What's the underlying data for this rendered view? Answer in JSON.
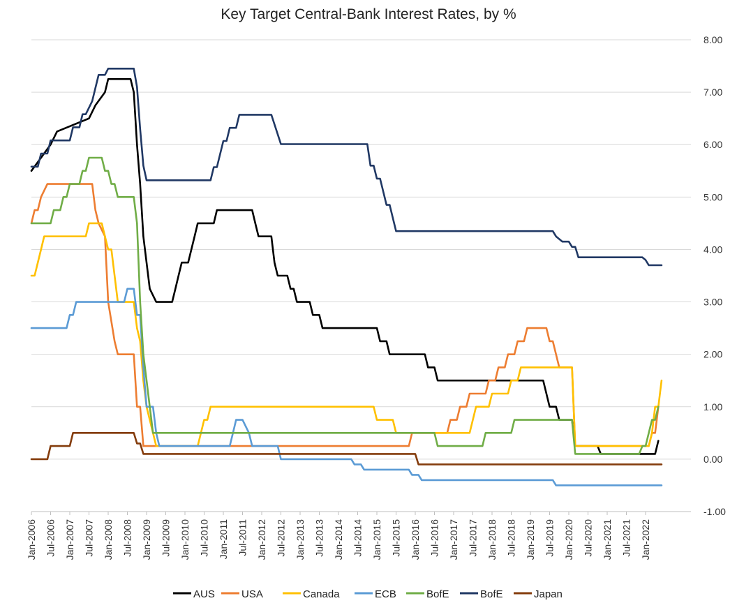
{
  "chart_data": {
    "type": "line",
    "title": "Key Target Central-Bank Interest Rates, by %",
    "xlabel": "",
    "ylabel": "",
    "ylim": [
      -1.0,
      8.0
    ],
    "y_ticks": [
      "8.00",
      "7.00",
      "6.00",
      "5.00",
      "4.00",
      "3.00",
      "2.00",
      "1.00",
      "0.00",
      "-1.00"
    ],
    "x_ticks": [
      "Jan-2006",
      "Jul-2006",
      "Jan-2007",
      "Jul-2007",
      "Jan-2008",
      "Jul-2008",
      "Jan-2009",
      "Jul-2009",
      "Jan-2010",
      "Jul-2010",
      "Jan-2011",
      "Jul-2011",
      "Jan-2012",
      "Jul-2012",
      "Jan-2013",
      "Jul-2013",
      "Jan-2014",
      "Jul-2014",
      "Jan-2015",
      "Jul-2015",
      "Jan-2016",
      "Jul-2016",
      "Jan-2017",
      "Jul-2017",
      "Jan-2018",
      "Jul-2018",
      "Jan-2019",
      "Jul-2019",
      "Jan-2020",
      "Jul-2020",
      "Jan-2021",
      "Jul-2021",
      "Jan-2022"
    ],
    "grid": true,
    "legend_position": "bottom",
    "series": [
      {
        "name": "AUS",
        "color": "#000000",
        "points": [
          [
            "2006-01",
            5.5
          ],
          [
            "2006-04",
            5.75
          ],
          [
            "2006-07",
            6.0
          ],
          [
            "2006-09",
            6.25
          ],
          [
            "2007-07",
            6.5
          ],
          [
            "2007-09",
            6.75
          ],
          [
            "2007-12",
            7.0
          ],
          [
            "2008-01",
            7.25
          ],
          [
            "2008-08",
            7.25
          ],
          [
            "2008-09",
            7.0
          ],
          [
            "2008-10",
            6.0
          ],
          [
            "2008-11",
            5.25
          ],
          [
            "2008-12",
            4.25
          ],
          [
            "2009-02",
            3.25
          ],
          [
            "2009-04",
            3.0
          ],
          [
            "2009-09",
            3.0
          ],
          [
            "2009-10",
            3.25
          ],
          [
            "2009-11",
            3.5
          ],
          [
            "2009-12",
            3.75
          ],
          [
            "2010-02",
            3.75
          ],
          [
            "2010-03",
            4.0
          ],
          [
            "2010-04",
            4.25
          ],
          [
            "2010-05",
            4.5
          ],
          [
            "2010-10",
            4.5
          ],
          [
            "2010-11",
            4.75
          ],
          [
            "2011-10",
            4.75
          ],
          [
            "2011-11",
            4.5
          ],
          [
            "2011-12",
            4.25
          ],
          [
            "2012-04",
            4.25
          ],
          [
            "2012-05",
            3.75
          ],
          [
            "2012-06",
            3.5
          ],
          [
            "2012-09",
            3.5
          ],
          [
            "2012-10",
            3.25
          ],
          [
            "2012-11",
            3.25
          ],
          [
            "2012-12",
            3.0
          ],
          [
            "2013-04",
            3.0
          ],
          [
            "2013-05",
            2.75
          ],
          [
            "2013-07",
            2.75
          ],
          [
            "2013-08",
            2.5
          ],
          [
            "2015-01",
            2.5
          ],
          [
            "2015-02",
            2.25
          ],
          [
            "2015-04",
            2.25
          ],
          [
            "2015-05",
            2.0
          ],
          [
            "2016-04",
            2.0
          ],
          [
            "2016-05",
            1.75
          ],
          [
            "2016-07",
            1.75
          ],
          [
            "2016-08",
            1.5
          ],
          [
            "2019-05",
            1.5
          ],
          [
            "2019-06",
            1.25
          ],
          [
            "2019-07",
            1.0
          ],
          [
            "2019-09",
            1.0
          ],
          [
            "2019-10",
            0.75
          ],
          [
            "2020-02",
            0.75
          ],
          [
            "2020-03",
            0.25
          ],
          [
            "2020-10",
            0.25
          ],
          [
            "2020-11",
            0.1
          ],
          [
            "2022-04",
            0.1
          ],
          [
            "2022-05",
            0.35
          ]
        ]
      },
      {
        "name": "USA",
        "color": "#ED7D31",
        "points": [
          [
            "2006-01",
            4.5
          ],
          [
            "2006-02",
            4.75
          ],
          [
            "2006-03",
            4.75
          ],
          [
            "2006-04",
            5.0
          ],
          [
            "2006-06",
            5.25
          ],
          [
            "2007-08",
            5.25
          ],
          [
            "2007-09",
            4.75
          ],
          [
            "2007-10",
            4.5
          ],
          [
            "2007-12",
            4.25
          ],
          [
            "2008-01",
            3.0
          ],
          [
            "2008-03",
            2.25
          ],
          [
            "2008-04",
            2.0
          ],
          [
            "2008-09",
            2.0
          ],
          [
            "2008-10",
            1.0
          ],
          [
            "2008-11",
            1.0
          ],
          [
            "2008-12",
            0.25
          ],
          [
            "2015-11",
            0.25
          ],
          [
            "2015-12",
            0.5
          ],
          [
            "2016-11",
            0.5
          ],
          [
            "2016-12",
            0.75
          ],
          [
            "2017-02",
            0.75
          ],
          [
            "2017-03",
            1.0
          ],
          [
            "2017-05",
            1.0
          ],
          [
            "2017-06",
            1.25
          ],
          [
            "2017-11",
            1.25
          ],
          [
            "2017-12",
            1.5
          ],
          [
            "2018-02",
            1.5
          ],
          [
            "2018-03",
            1.75
          ],
          [
            "2018-05",
            1.75
          ],
          [
            "2018-06",
            2.0
          ],
          [
            "2018-08",
            2.0
          ],
          [
            "2018-09",
            2.25
          ],
          [
            "2018-11",
            2.25
          ],
          [
            "2018-12",
            2.5
          ],
          [
            "2019-06",
            2.5
          ],
          [
            "2019-07",
            2.25
          ],
          [
            "2019-08",
            2.25
          ],
          [
            "2019-09",
            2.0
          ],
          [
            "2019-10",
            1.75
          ],
          [
            "2020-02",
            1.75
          ],
          [
            "2020-03",
            0.25
          ],
          [
            "2022-02",
            0.25
          ],
          [
            "2022-03",
            0.5
          ],
          [
            "2022-04",
            0.5
          ],
          [
            "2022-05",
            1.0
          ]
        ]
      },
      {
        "name": "Canada",
        "color": "#FFC000",
        "points": [
          [
            "2006-01",
            3.5
          ],
          [
            "2006-02",
            3.5
          ],
          [
            "2006-04",
            4.0
          ],
          [
            "2006-05",
            4.25
          ],
          [
            "2007-06",
            4.25
          ],
          [
            "2007-07",
            4.5
          ],
          [
            "2007-11",
            4.5
          ],
          [
            "2007-12",
            4.25
          ],
          [
            "2008-01",
            4.0
          ],
          [
            "2008-02",
            4.0
          ],
          [
            "2008-03",
            3.5
          ],
          [
            "2008-04",
            3.0
          ],
          [
            "2008-09",
            3.0
          ],
          [
            "2008-10",
            2.5
          ],
          [
            "2008-11",
            2.25
          ],
          [
            "2008-12",
            1.5
          ],
          [
            "2009-01",
            1.0
          ],
          [
            "2009-03",
            0.5
          ],
          [
            "2009-04",
            0.25
          ],
          [
            "2010-05",
            0.25
          ],
          [
            "2010-06",
            0.5
          ],
          [
            "2010-07",
            0.75
          ],
          [
            "2010-08",
            0.75
          ],
          [
            "2010-09",
            1.0
          ],
          [
            "2014-12",
            1.0
          ],
          [
            "2015-01",
            0.75
          ],
          [
            "2015-06",
            0.75
          ],
          [
            "2015-07",
            0.5
          ],
          [
            "2017-06",
            0.5
          ],
          [
            "2017-07",
            0.75
          ],
          [
            "2017-08",
            1.0
          ],
          [
            "2017-12",
            1.0
          ],
          [
            "2018-01",
            1.25
          ],
          [
            "2018-06",
            1.25
          ],
          [
            "2018-07",
            1.5
          ],
          [
            "2018-09",
            1.5
          ],
          [
            "2018-10",
            1.75
          ],
          [
            "2020-02",
            1.75
          ],
          [
            "2020-03",
            0.25
          ],
          [
            "2022-02",
            0.25
          ],
          [
            "2022-03",
            0.5
          ],
          [
            "2022-04",
            1.0
          ],
          [
            "2022-05",
            1.0
          ],
          [
            "2022-06",
            1.5
          ]
        ]
      },
      {
        "name": "ECB",
        "color": "#5B9BD5",
        "points": [
          [
            "2006-01",
            2.5
          ],
          [
            "2006-12",
            2.5
          ],
          [
            "2007-01",
            2.75
          ],
          [
            "2007-02",
            2.75
          ],
          [
            "2007-03",
            3.0
          ],
          [
            "2008-06",
            3.0
          ],
          [
            "2008-07",
            3.25
          ],
          [
            "2008-09",
            3.25
          ],
          [
            "2008-10",
            2.75
          ],
          [
            "2008-11",
            2.75
          ],
          [
            "2008-12",
            1.75
          ],
          [
            "2009-01",
            1.0
          ],
          [
            "2009-03",
            1.0
          ],
          [
            "2009-04",
            0.5
          ],
          [
            "2009-05",
            0.25
          ],
          [
            "2011-03",
            0.25
          ],
          [
            "2011-04",
            0.5
          ],
          [
            "2011-05",
            0.75
          ],
          [
            "2011-07",
            0.75
          ],
          [
            "2011-09",
            0.5
          ],
          [
            "2011-10",
            0.25
          ],
          [
            "2012-06",
            0.25
          ],
          [
            "2012-07",
            0.0
          ],
          [
            "2014-05",
            0.0
          ],
          [
            "2014-06",
            -0.1
          ],
          [
            "2014-08",
            -0.1
          ],
          [
            "2014-09",
            -0.2
          ],
          [
            "2015-11",
            -0.2
          ],
          [
            "2015-12",
            -0.3
          ],
          [
            "2016-02",
            -0.3
          ],
          [
            "2016-03",
            -0.4
          ],
          [
            "2019-08",
            -0.4
          ],
          [
            "2019-09",
            -0.5
          ],
          [
            "2022-06",
            -0.5
          ]
        ]
      },
      {
        "name": "BofE",
        "color": "#70AD47",
        "points": [
          [
            "2006-01",
            4.5
          ],
          [
            "2006-07",
            4.5
          ],
          [
            "2006-08",
            4.75
          ],
          [
            "2006-10",
            4.75
          ],
          [
            "2006-11",
            5.0
          ],
          [
            "2006-12",
            5.0
          ],
          [
            "2007-01",
            5.25
          ],
          [
            "2007-04",
            5.25
          ],
          [
            "2007-05",
            5.5
          ],
          [
            "2007-06",
            5.5
          ],
          [
            "2007-07",
            5.75
          ],
          [
            "2007-11",
            5.75
          ],
          [
            "2007-12",
            5.5
          ],
          [
            "2008-01",
            5.5
          ],
          [
            "2008-02",
            5.25
          ],
          [
            "2008-03",
            5.25
          ],
          [
            "2008-04",
            5.0
          ],
          [
            "2008-09",
            5.0
          ],
          [
            "2008-10",
            4.5
          ],
          [
            "2008-11",
            3.0
          ],
          [
            "2008-12",
            2.0
          ],
          [
            "2009-01",
            1.5
          ],
          [
            "2009-02",
            1.0
          ],
          [
            "2009-03",
            0.5
          ],
          [
            "2016-07",
            0.5
          ],
          [
            "2016-08",
            0.25
          ],
          [
            "2017-10",
            0.25
          ],
          [
            "2017-11",
            0.5
          ],
          [
            "2018-07",
            0.5
          ],
          [
            "2018-08",
            0.75
          ],
          [
            "2020-02",
            0.75
          ],
          [
            "2020-03",
            0.1
          ],
          [
            "2021-11",
            0.1
          ],
          [
            "2021-12",
            0.25
          ],
          [
            "2022-01",
            0.25
          ],
          [
            "2022-02",
            0.5
          ],
          [
            "2022-03",
            0.75
          ],
          [
            "2022-04",
            0.75
          ],
          [
            "2022-05",
            1.0
          ]
        ]
      },
      {
        "name": "BofE",
        "color": "#203864",
        "points": [
          [
            "2006-01",
            5.58
          ],
          [
            "2006-03",
            5.58
          ],
          [
            "2006-04",
            5.83
          ],
          [
            "2006-06",
            5.83
          ],
          [
            "2006-07",
            6.08
          ],
          [
            "2007-01",
            6.08
          ],
          [
            "2007-02",
            6.33
          ],
          [
            "2007-04",
            6.33
          ],
          [
            "2007-05",
            6.58
          ],
          [
            "2007-06",
            6.58
          ],
          [
            "2007-08",
            6.83
          ],
          [
            "2007-09",
            7.08
          ],
          [
            "2007-10",
            7.33
          ],
          [
            "2007-12",
            7.33
          ],
          [
            "2008-01",
            7.45
          ],
          [
            "2008-09",
            7.45
          ],
          [
            "2008-10",
            7.1
          ],
          [
            "2008-11",
            6.3
          ],
          [
            "2008-12",
            5.6
          ],
          [
            "2009-01",
            5.32
          ],
          [
            "2010-09",
            5.32
          ],
          [
            "2010-10",
            5.57
          ],
          [
            "2010-11",
            5.57
          ],
          [
            "2011-01",
            6.07
          ],
          [
            "2011-02",
            6.07
          ],
          [
            "2011-03",
            6.32
          ],
          [
            "2011-05",
            6.32
          ],
          [
            "2011-06",
            6.57
          ],
          [
            "2012-04",
            6.57
          ],
          [
            "2012-07",
            6.01
          ],
          [
            "2014-10",
            6.01
          ],
          [
            "2014-11",
            5.6
          ],
          [
            "2014-12",
            5.6
          ],
          [
            "2015-01",
            5.35
          ],
          [
            "2015-02",
            5.35
          ],
          [
            "2015-04",
            4.85
          ],
          [
            "2015-05",
            4.85
          ],
          [
            "2015-06",
            4.6
          ],
          [
            "2015-07",
            4.35
          ],
          [
            "2019-08",
            4.35
          ],
          [
            "2019-09",
            4.25
          ],
          [
            "2019-11",
            4.15
          ],
          [
            "2020-01",
            4.15
          ],
          [
            "2020-02",
            4.05
          ],
          [
            "2020-03",
            4.05
          ],
          [
            "2020-04",
            3.85
          ],
          [
            "2021-12",
            3.85
          ],
          [
            "2022-01",
            3.8
          ],
          [
            "2022-02",
            3.7
          ],
          [
            "2022-06",
            3.7
          ]
        ]
      },
      {
        "name": "Japan",
        "color": "#843C0C",
        "points": [
          [
            "2006-01",
            0.0
          ],
          [
            "2006-06",
            0.0
          ],
          [
            "2006-07",
            0.25
          ],
          [
            "2007-01",
            0.25
          ],
          [
            "2007-02",
            0.5
          ],
          [
            "2008-09",
            0.5
          ],
          [
            "2008-10",
            0.3
          ],
          [
            "2008-11",
            0.3
          ],
          [
            "2008-12",
            0.1
          ],
          [
            "2016-01",
            0.1
          ],
          [
            "2016-02",
            -0.1
          ],
          [
            "2022-06",
            -0.1
          ]
        ]
      }
    ]
  }
}
